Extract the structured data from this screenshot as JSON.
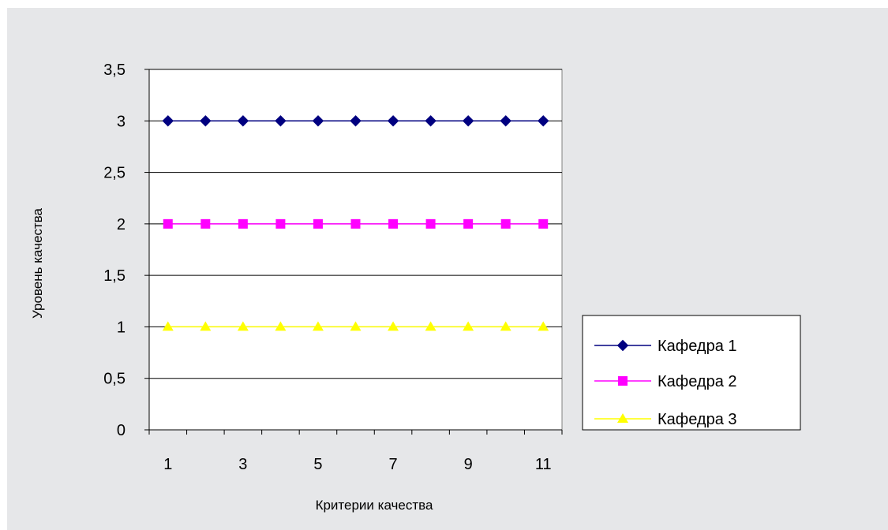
{
  "chart_data": {
    "type": "line",
    "title": "",
    "xlabel": "Критерии качества",
    "ylabel": "Уровень качества",
    "categories": [
      1,
      2,
      3,
      4,
      5,
      6,
      7,
      8,
      9,
      10,
      11
    ],
    "x_tick_labels": [
      "1",
      "",
      "3",
      "",
      "5",
      "",
      "7",
      "",
      "9",
      "",
      "11"
    ],
    "y_tick_labels": [
      "0",
      "0,5",
      "1",
      "1,5",
      "2",
      "2,5",
      "3",
      "3,5"
    ],
    "y_ticks": [
      0,
      0.5,
      1,
      1.5,
      2,
      2.5,
      3,
      3.5
    ],
    "ylim": [
      0,
      3.5
    ],
    "grid": "horizontal",
    "legend_position": "right",
    "series": [
      {
        "name": "Кафедра 1",
        "values": [
          3,
          3,
          3,
          3,
          3,
          3,
          3,
          3,
          3,
          3,
          3
        ],
        "color": "#000080",
        "marker": "diamond"
      },
      {
        "name": "Кафедра 2",
        "values": [
          2,
          2,
          2,
          2,
          2,
          2,
          2,
          2,
          2,
          2,
          2
        ],
        "color": "#ff00ff",
        "marker": "square"
      },
      {
        "name": "Кафедра 3",
        "values": [
          1,
          1,
          1,
          1,
          1,
          1,
          1,
          1,
          1,
          1,
          1
        ],
        "color": "#ffff00",
        "marker": "triangle"
      }
    ]
  }
}
